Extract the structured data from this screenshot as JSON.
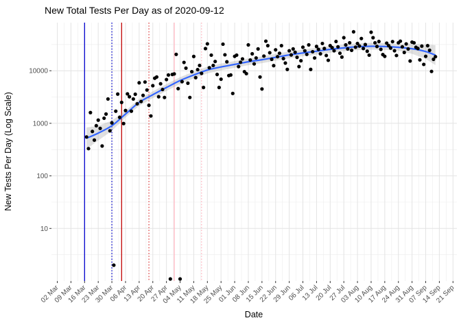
{
  "chart_data": {
    "type": "scatter",
    "title": "New Total Tests Per Day as of 2020-09-12",
    "x_axis": {
      "label": "Date",
      "range": [
        "2020-02-28",
        "2020-09-23"
      ],
      "ticks": [
        {
          "date": "2020-03-02",
          "label": "02 Mar"
        },
        {
          "date": "2020-03-09",
          "label": "09 Mar"
        },
        {
          "date": "2020-03-16",
          "label": "16 Mar"
        },
        {
          "date": "2020-03-23",
          "label": "23 Mar"
        },
        {
          "date": "2020-03-30",
          "label": "30 Mar"
        },
        {
          "date": "2020-04-06",
          "label": "06 Apr"
        },
        {
          "date": "2020-04-13",
          "label": "13 Apr"
        },
        {
          "date": "2020-04-20",
          "label": "20 Apr"
        },
        {
          "date": "2020-04-27",
          "label": "27 Apr"
        },
        {
          "date": "2020-05-04",
          "label": "04 May"
        },
        {
          "date": "2020-05-11",
          "label": "11 May"
        },
        {
          "date": "2020-05-18",
          "label": "18 May"
        },
        {
          "date": "2020-05-25",
          "label": "25 May"
        },
        {
          "date": "2020-06-01",
          "label": "01 Jun"
        },
        {
          "date": "2020-06-08",
          "label": "08 Jun"
        },
        {
          "date": "2020-06-15",
          "label": "15 Jun"
        },
        {
          "date": "2020-06-22",
          "label": "22 Jun"
        },
        {
          "date": "2020-06-29",
          "label": "29 Jun"
        },
        {
          "date": "2020-07-06",
          "label": "06 Jul"
        },
        {
          "date": "2020-07-13",
          "label": "13 Jul"
        },
        {
          "date": "2020-07-20",
          "label": "20 Jul"
        },
        {
          "date": "2020-07-27",
          "label": "27 Jul"
        },
        {
          "date": "2020-08-03",
          "label": "03 Aug"
        },
        {
          "date": "2020-08-10",
          "label": "10 Aug"
        },
        {
          "date": "2020-08-17",
          "label": "17 Aug"
        },
        {
          "date": "2020-08-24",
          "label": "24 Aug"
        },
        {
          "date": "2020-08-31",
          "label": "31 Aug"
        },
        {
          "date": "2020-09-07",
          "label": "07 Sep"
        },
        {
          "date": "2020-09-14",
          "label": "14 Sep"
        },
        {
          "date": "2020-09-21",
          "label": "21 Sep"
        }
      ]
    },
    "y_axis": {
      "label": "New Tests Per Day (Log Scale)",
      "scale": "log10",
      "range": [
        1,
        84000
      ],
      "ticks": [
        10,
        100,
        1000,
        10000
      ],
      "tick_labels": [
        "10",
        "100",
        "1000",
        "10000"
      ],
      "minor_ticks": [
        3.162,
        31.62,
        316.2,
        3162,
        31623
      ]
    },
    "grid": true,
    "legend": false,
    "points": {
      "start_date": "2020-03-17",
      "frequency": "daily",
      "values": [
        550,
        330,
        1600,
        700,
        480,
        900,
        1150,
        800,
        370,
        1250,
        1500,
        2900,
        720,
        1020,
        2,
        1700,
        3600,
        1300,
        2500,
        990,
        1750,
        3630,
        3200,
        1700,
        2900,
        3570,
        2350,
        5900,
        2600,
        3400,
        6100,
        4300,
        2200,
        1380,
        5200,
        7200,
        7600,
        3200,
        5650,
        4400,
        3100,
        6800,
        8300,
        1,
        8500,
        8700,
        20500,
        4570,
        1,
        6200,
        14400,
        11200,
        5800,
        3100,
        9600,
        18700,
        7400,
        10500,
        12600,
        8900,
        4800,
        26400,
        32500,
        11400,
        19800,
        12600,
        15000,
        8500,
        4800,
        6900,
        32000,
        20100,
        14800,
        8100,
        8300,
        3700,
        18800,
        19800,
        12000,
        14500,
        16800,
        9600,
        8800,
        31000,
        16000,
        21000,
        13500,
        17500,
        26000,
        7600,
        4500,
        19000,
        36500,
        30000,
        22000,
        16500,
        12500,
        25000,
        18500,
        21500,
        30000,
        17000,
        14000,
        10600,
        24000,
        20000,
        26000,
        22500,
        18000,
        12000,
        15500,
        28000,
        24000,
        20500,
        31000,
        10600,
        23000,
        17500,
        29000,
        25500,
        21000,
        33000,
        26500,
        19500,
        15800,
        30000,
        27500,
        24000,
        36000,
        28500,
        21500,
        18200,
        42500,
        31000,
        26000,
        34000,
        24500,
        55000,
        28000,
        33000,
        29500,
        41000,
        26500,
        31500,
        23500,
        19800,
        54000,
        42500,
        34000,
        29000,
        36000,
        25500,
        20300,
        18800,
        33500,
        30000,
        27000,
        35800,
        24000,
        19500,
        34000,
        36500,
        28500,
        22300,
        32400,
        26000,
        15300,
        35000,
        34000,
        27900,
        26500,
        16100,
        29400,
        13200,
        18800,
        30000,
        24500,
        9700,
        16500,
        18500
      ]
    },
    "smooth_line": {
      "color": "#3366FF",
      "ribbon_color": "#999999",
      "ribbon_opacity": 0.3,
      "points": [
        [
          "2020-03-17",
          520
        ],
        [
          "2020-03-23",
          650
        ],
        [
          "2020-03-30",
          900
        ],
        [
          "2020-04-06",
          1500
        ],
        [
          "2020-04-13",
          2500
        ],
        [
          "2020-04-20",
          3500
        ],
        [
          "2020-04-27",
          4800
        ],
        [
          "2020-05-04",
          6500
        ],
        [
          "2020-05-11",
          8300
        ],
        [
          "2020-05-18",
          10300
        ],
        [
          "2020-05-25",
          11800
        ],
        [
          "2020-06-01",
          13200
        ],
        [
          "2020-06-08",
          14800
        ],
        [
          "2020-06-15",
          16200
        ],
        [
          "2020-06-22",
          18000
        ],
        [
          "2020-06-29",
          20000
        ],
        [
          "2020-07-06",
          21800
        ],
        [
          "2020-07-13",
          23500
        ],
        [
          "2020-07-20",
          25500
        ],
        [
          "2020-07-27",
          27200
        ],
        [
          "2020-08-03",
          28600
        ],
        [
          "2020-08-10",
          29200
        ],
        [
          "2020-08-17",
          28900
        ],
        [
          "2020-08-24",
          27900
        ],
        [
          "2020-08-31",
          26200
        ],
        [
          "2020-09-07",
          23200
        ],
        [
          "2020-09-12",
          19800
        ]
      ]
    },
    "vlines": [
      {
        "date": "2020-03-16",
        "color": "#0000CD",
        "style": "solid"
      },
      {
        "date": "2020-03-30",
        "color": "#0000CD",
        "style": "dotted"
      },
      {
        "date": "2020-04-04",
        "color": "#C00000",
        "style": "solid"
      },
      {
        "date": "2020-04-18",
        "color": "#DD4444",
        "style": "dotted"
      },
      {
        "date": "2020-05-01",
        "color": "#FFB6C1",
        "style": "solid"
      },
      {
        "date": "2020-05-15",
        "color": "#FFB6C1",
        "style": "dotted"
      }
    ],
    "point_color": "#000000",
    "grid_major_color": "#e3e3e3",
    "grid_minor_color": "#efefef",
    "tick_text_color": "#4d4d4d"
  }
}
